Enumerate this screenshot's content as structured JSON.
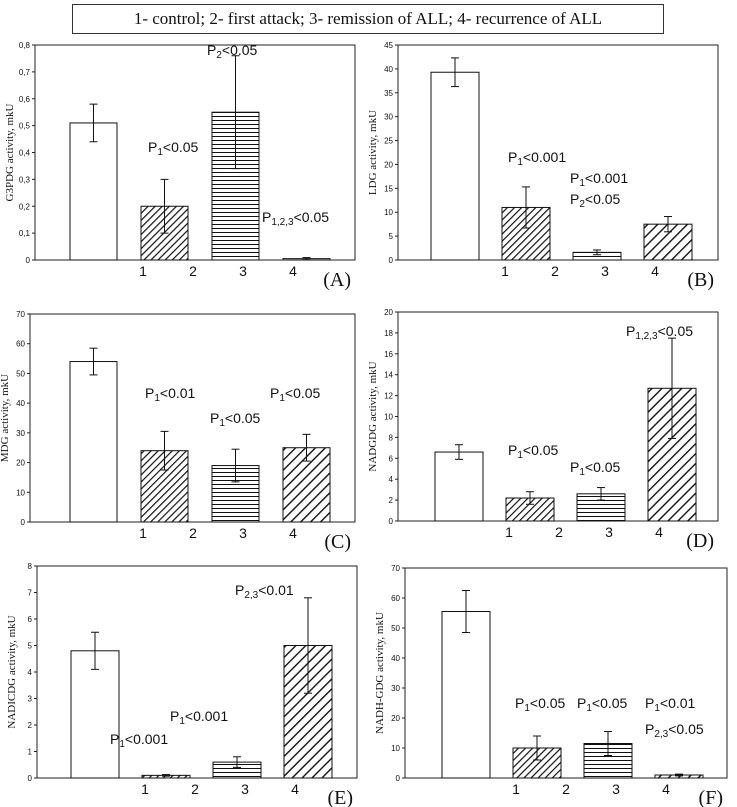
{
  "legend": {
    "text": "1- control; 2- first attack; 3- remission of ALL; 4- recurrence of ALL"
  },
  "chart_data": [
    {
      "type": "bar",
      "panel_label": "(A)",
      "ylabel": "G3PDG activity, mkU",
      "ylim": [
        0,
        0.8
      ],
      "yticks": [
        "0",
        "0,1",
        "0,2",
        "0,3",
        "0,4",
        "0,5",
        "0,6",
        "0,7",
        "0,8"
      ],
      "categories": [
        "1",
        "2",
        "3",
        "4"
      ],
      "values": [
        0.51,
        0.2,
        0.55,
        0.005
      ],
      "errors": [
        0.07,
        0.1,
        0.21,
        0.004
      ],
      "patterns": [
        "none",
        "diag-fine",
        "horiz",
        "none"
      ],
      "annotations": [
        {
          "base": "P",
          "sub": "1",
          "rest": "<0.05",
          "near": 2
        },
        {
          "base": "P",
          "sub": "2",
          "rest": "<0.05",
          "near": 3
        },
        {
          "base": "P",
          "sub": "1,2,3",
          "rest": "<0.05",
          "near": 4
        }
      ]
    },
    {
      "type": "bar",
      "panel_label": "(B)",
      "ylabel": "LDG activity, mkU",
      "ylim": [
        0,
        45
      ],
      "yticks": [
        "0",
        "5",
        "10",
        "15",
        "20",
        "25",
        "30",
        "35",
        "40",
        "45"
      ],
      "categories": [
        "1",
        "2",
        "3",
        "4"
      ],
      "values": [
        39.3,
        11.0,
        1.6,
        7.5
      ],
      "errors": [
        3.0,
        4.3,
        0.5,
        1.6
      ],
      "patterns": [
        "none",
        "diag-fine",
        "horiz",
        "diag-wide"
      ],
      "annotations": [
        {
          "base": "P",
          "sub": "1",
          "rest": "<0.001",
          "near": 2
        },
        {
          "base": "P",
          "sub": "1",
          "rest": "<0.001",
          "near": 3
        },
        {
          "base": "P",
          "sub": "2",
          "rest": "<0.05",
          "near": 3
        }
      ]
    },
    {
      "type": "bar",
      "panel_label": "(C)",
      "ylabel": "MDG activity, mkU",
      "ylim": [
        0,
        70
      ],
      "yticks": [
        "0",
        "10",
        "20",
        "30",
        "40",
        "50",
        "60",
        "70"
      ],
      "categories": [
        "1",
        "2",
        "3",
        "4"
      ],
      "values": [
        54,
        24,
        19,
        25
      ],
      "errors": [
        4.5,
        6.5,
        5.5,
        4.5
      ],
      "patterns": [
        "none",
        "diag-fine",
        "horiz",
        "diag-wide"
      ],
      "annotations": [
        {
          "base": "P",
          "sub": "1",
          "rest": "<0.01",
          "near": 2
        },
        {
          "base": "P",
          "sub": "1",
          "rest": "<0.05",
          "near": 3
        },
        {
          "base": "P",
          "sub": "1",
          "rest": "<0.05",
          "near": 4
        }
      ]
    },
    {
      "type": "bar",
      "panel_label": "(D)",
      "ylabel": "NADGDG activity, mkU",
      "ylim": [
        0,
        20
      ],
      "yticks": [
        "0",
        "2",
        "4",
        "6",
        "8",
        "10",
        "12",
        "14",
        "16",
        "18",
        "20"
      ],
      "categories": [
        "1",
        "2",
        "3",
        "4"
      ],
      "values": [
        6.6,
        2.2,
        2.6,
        12.7
      ],
      "errors": [
        0.7,
        0.6,
        0.6,
        4.8
      ],
      "patterns": [
        "none",
        "diag-fine",
        "horiz",
        "diag-wide"
      ],
      "annotations": [
        {
          "base": "P",
          "sub": "1",
          "rest": "<0.05",
          "near": 2
        },
        {
          "base": "P",
          "sub": "1",
          "rest": "<0.05",
          "near": 3
        },
        {
          "base": "P",
          "sub": "1,2,3",
          "rest": "<0.05",
          "near": 4
        }
      ]
    },
    {
      "type": "bar",
      "panel_label": "(E)",
      "ylabel": "NADICDG activity, mkU",
      "ylim": [
        0,
        8
      ],
      "yticks": [
        "0",
        "1",
        "2",
        "3",
        "4",
        "5",
        "6",
        "7",
        "8"
      ],
      "categories": [
        "1",
        "2",
        "3",
        "4"
      ],
      "values": [
        4.8,
        0.1,
        0.6,
        5.0
      ],
      "errors": [
        0.7,
        0.03,
        0.2,
        1.8
      ],
      "patterns": [
        "none",
        "diag-fine",
        "horiz",
        "diag-wide"
      ],
      "annotations": [
        {
          "base": "P",
          "sub": "1",
          "rest": "<0.001",
          "near": 2
        },
        {
          "base": "P",
          "sub": "1",
          "rest": "<0.001",
          "near": 3
        },
        {
          "base": "P",
          "sub": "2,3",
          "rest": "<0.01",
          "near": 4
        }
      ]
    },
    {
      "type": "bar",
      "panel_label": "(F)",
      "ylabel": "NADH-GDG activity, mkU",
      "ylim": [
        0,
        70
      ],
      "yticks": [
        "0",
        "10",
        "20",
        "30",
        "40",
        "50",
        "60",
        "70"
      ],
      "categories": [
        "1",
        "2",
        "3",
        "4"
      ],
      "values": [
        55.5,
        10,
        11.5,
        1
      ],
      "errors": [
        7,
        4,
        4,
        0.3
      ],
      "patterns": [
        "none",
        "diag-fine",
        "horiz",
        "diag-wide"
      ],
      "annotations": [
        {
          "base": "P",
          "sub": "1",
          "rest": "<0.05",
          "near": 2
        },
        {
          "base": "P",
          "sub": "1",
          "rest": "<0.05",
          "near": 3
        },
        {
          "base": "P",
          "sub": "1",
          "rest": "<0.01",
          "near": 4
        },
        {
          "base": "P",
          "sub": "2,3",
          "rest": "<0.05",
          "near": 4
        }
      ]
    }
  ]
}
